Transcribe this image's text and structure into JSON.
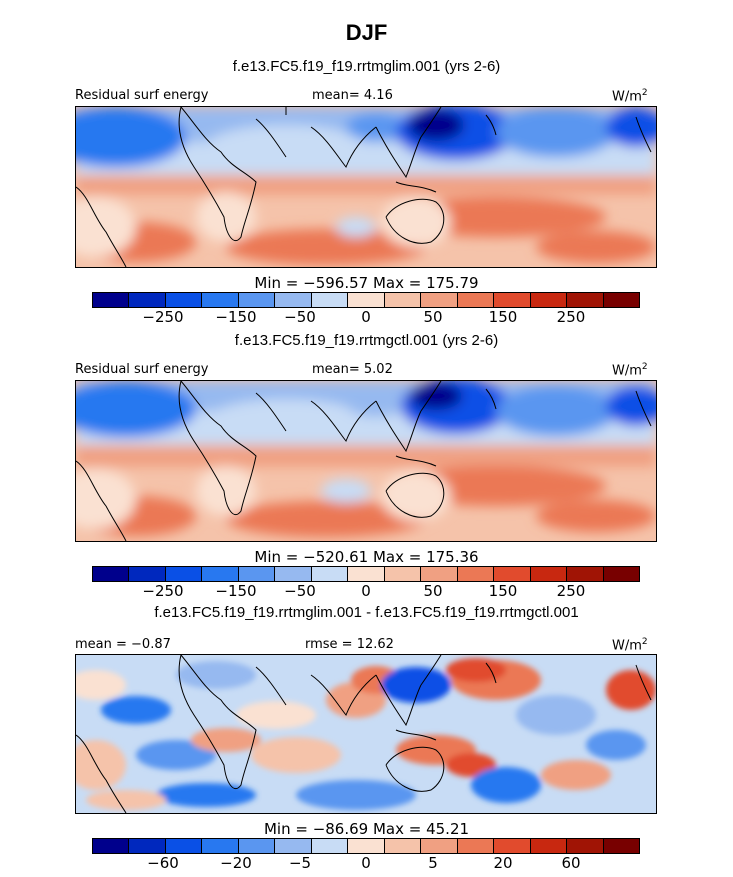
{
  "figure": {
    "title": "DJF",
    "colors": [
      "#00008c",
      "#0028be",
      "#0a50e6",
      "#2878f0",
      "#5a96f0",
      "#96b9f0",
      "#c8dcf5",
      "#fae1d2",
      "#f5c3aa",
      "#f0a082",
      "#eb7855",
      "#e14b2d",
      "#c82810",
      "#a01405",
      "#780000"
    ],
    "unit": "W/m"
  },
  "panels": [
    {
      "title": "f.e13.FC5.f19_f19.rrtmglim.001 (yrs 2-6)",
      "left_label": "Residual surf energy",
      "center_label": "mean=   4.16",
      "right_label": "W/m",
      "unit_exp": "2",
      "minmax": "Min = −596.57 Max = 175.79",
      "ticks": [
        "−250",
        "−150",
        "−50",
        "0",
        "50",
        "150",
        "250"
      ]
    },
    {
      "title": "f.e13.FC5.f19_f19.rrtmgctl.001 (yrs 2-6)",
      "left_label": "Residual surf energy",
      "center_label": "mean=   5.02",
      "right_label": "W/m",
      "unit_exp": "2",
      "minmax": "Min = −520.61 Max = 175.36",
      "ticks": [
        "−250",
        "−150",
        "−50",
        "0",
        "50",
        "150",
        "250"
      ]
    },
    {
      "title": "f.e13.FC5.f19_f19.rrtmglim.001 - f.e13.FC5.f19_f19.rrtmgctl.001",
      "left_label": "mean =  −0.87",
      "center_label": "rmse =   12.62",
      "right_label": "W/m",
      "unit_exp": "2",
      "minmax": "Min = −86.69 Max =  45.21",
      "ticks": [
        "−60",
        "−20",
        "−5",
        "0",
        "5",
        "20",
        "60"
      ]
    }
  ],
  "chart_data": [
    {
      "type": "heatmap",
      "title": "f.e13.FC5.f19_f19.rrtmglim.001 (yrs 2-6)",
      "variable": "Residual surf energy",
      "season": "DJF",
      "mean": 4.16,
      "min": -596.57,
      "max": 175.79,
      "unit": "W/m2",
      "colorbar_ticks": [
        -250,
        -150,
        -50,
        0,
        50,
        150,
        250
      ]
    },
    {
      "type": "heatmap",
      "title": "f.e13.FC5.f19_f19.rrtmgctl.001 (yrs 2-6)",
      "variable": "Residual surf energy",
      "season": "DJF",
      "mean": 5.02,
      "min": -520.61,
      "max": 175.36,
      "unit": "W/m2",
      "colorbar_ticks": [
        -250,
        -150,
        -50,
        0,
        50,
        150,
        250
      ]
    },
    {
      "type": "heatmap",
      "title": "f.e13.FC5.f19_f19.rrtmglim.001 - f.e13.FC5.f19_f19.rrtmgctl.001",
      "season": "DJF",
      "mean": -0.87,
      "rmse": 12.62,
      "min": -86.69,
      "max": 45.21,
      "unit": "W/m2",
      "colorbar_ticks": [
        -60,
        -20,
        -5,
        0,
        5,
        20,
        60
      ]
    }
  ]
}
